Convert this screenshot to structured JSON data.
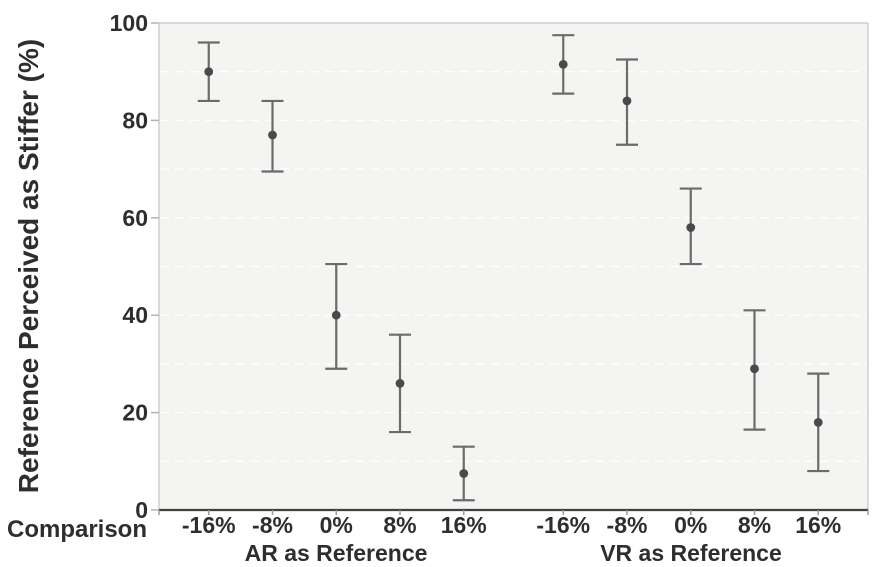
{
  "chart_data": {
    "type": "scatter",
    "title": "",
    "ylabel": "Reference Perceived as Stiffer (%)",
    "xlabel": "Comparison",
    "ylim": [
      0,
      100
    ],
    "yticks": [
      0,
      20,
      40,
      60,
      80,
      100
    ],
    "ytick_labels": [
      "0",
      "20",
      "40",
      "60",
      "80",
      "100"
    ],
    "gridlines": [
      10,
      20,
      30,
      40,
      50,
      60,
      70,
      80,
      90
    ],
    "grid_style": "horizontal dashed light lines on gray panel",
    "legend_position": "none",
    "categories": [
      "-16%",
      "-8%",
      "0%",
      "8%",
      "16%"
    ],
    "marker_style": "filled circle with vertical error bars (capped)",
    "series": [
      {
        "name": "AR as Reference",
        "means": [
          90,
          77,
          40,
          26,
          7.5
        ],
        "ci_low": [
          84,
          69.5,
          29,
          16,
          2
        ],
        "ci_high": [
          96,
          84,
          50.5,
          36,
          13
        ]
      },
      {
        "name": "VR as Reference",
        "means": [
          91.5,
          84,
          58,
          29,
          18
        ],
        "ci_low": [
          85.5,
          75,
          50.5,
          16.5,
          8
        ],
        "ci_high": [
          97.5,
          92.5,
          66,
          41,
          28
        ]
      }
    ]
  },
  "style": {
    "panel_bg": "#f4f4f2",
    "grid_color": "#ffffff",
    "border_color": "#c8c8c6",
    "axis_color": "#3f3f3f",
    "tick_color": "#9b9b98",
    "ytick_color": "#b3b3b0",
    "marker_color": "#4a4a4a",
    "errorbar_color": "#6b6b6b",
    "text_color": "#2e2e2e"
  }
}
